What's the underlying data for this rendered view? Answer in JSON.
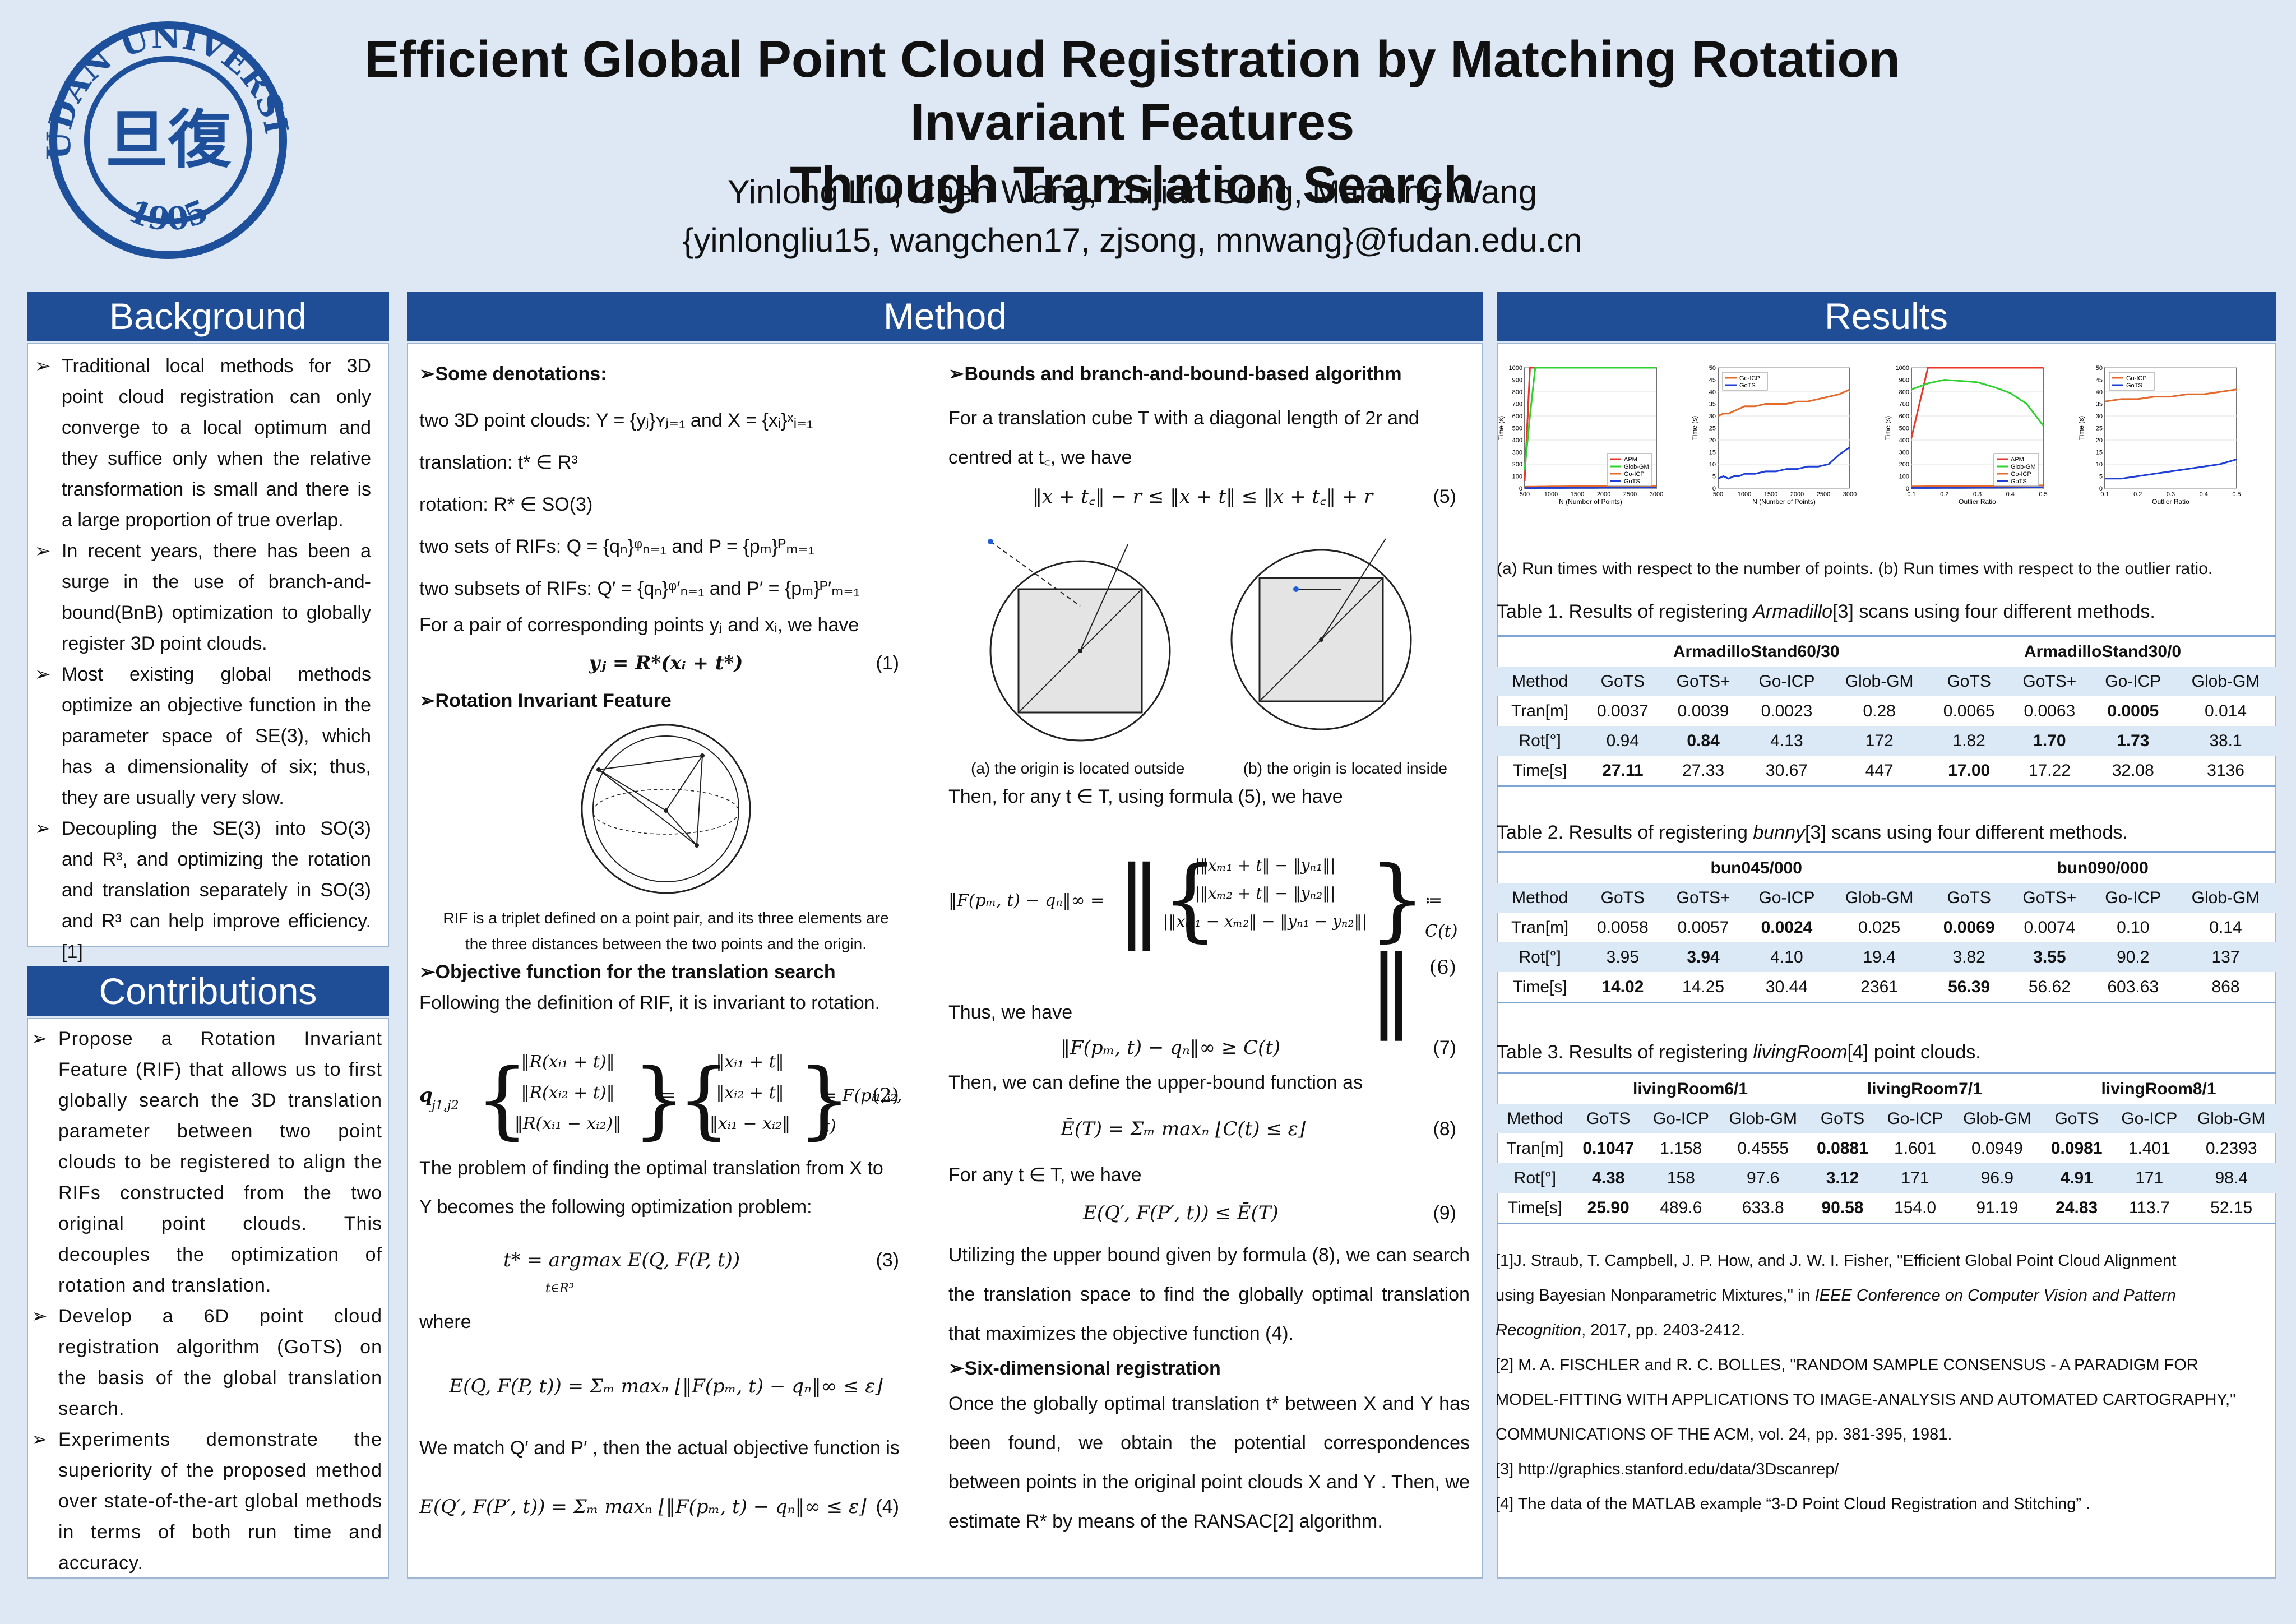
{
  "header": {
    "logo_text": "FUDAN UNIVERSITY",
    "logo_year": "1905",
    "logo_glyph": "旦復",
    "title_line1": "Efficient Global Point Cloud Registration  by Matching  Rotation Invariant Features",
    "title_line2": "Through Translation Search",
    "authors": "Yinlong Liu, Chen Wang, Zhijian Song, Manning Wang",
    "emails": "{yinlongliu15, wangchen17, zjsong, mnwang}@fudan.edu.cn"
  },
  "background": {
    "heading": "Background",
    "bullets": [
      "Traditional local methods for 3D point cloud registration can only converge to a local optimum and they suffice only when the relative transformation is small and there is a large proportion of true overlap.",
      "In recent years, there has been a surge in the use of branch-and-bound(BnB) optimization to globally register 3D point clouds.",
      "Most existing global methods optimize an objective function in the parameter space of SE(3), which has a dimensionality of six; thus, they are usually very slow.",
      "Decoupling the SE(3) into SO(3) and R³, and optimizing the rotation and translation separately in SO(3) and R³ can help improve efficiency.[1]"
    ]
  },
  "contributions": {
    "heading": "Contributions",
    "bullets": [
      "Propose a Rotation Invariant Feature (RIF) that allows us to first globally search the 3D translation parameter between two point clouds to be registered to align the RIFs constructed from the two original point clouds. This decouples the optimization of rotation and translation.",
      "Develop a 6D point cloud registration algorithm (GoTS) on the basis of the global translation search.",
      "Experiments demonstrate the superiority of the proposed method over state-of-the-art global methods in terms of both run time and accuracy."
    ]
  },
  "method": {
    "heading": "Method",
    "col1": {
      "sub1": "Some denotations:",
      "l1": "two 3D point clouds: Y = {yⱼ}ʏⱼ₌₁ and X = {xᵢ}ˣᵢ₌₁",
      "l2": "translation: t* ∈ R³",
      "l3": "rotation:  R* ∈ SO(3)",
      "l4": "two sets of RIFs: Q = {qₙ}ᵠₙ₌₁ and P = {pₘ}ᴾₘ₌₁",
      "l5": "two subsets of RIFs: Q′ = {qₙ}ᵠ′ₙ₌₁ and P′ = {pₘ}ᴾ′ₘ₌₁",
      "l6": "For a pair of corresponding points yⱼ and xᵢ, we have",
      "eq1": "yⱼ = R*(xᵢ + t*)",
      "n1": "(1)",
      "sub2": "Rotation Invariant Feature",
      "rif_cap1": "RIF is a triplet defined on a point pair, and its three elements are",
      "rif_cap2": "the three distances between the two points and the origin.",
      "sub3": "Objective function for the translation search",
      "l7": "Following the definition of RIF, it is invariant to rotation.",
      "eq2_lhs": "q",
      "eq2_lhs_sub": "j1,j2",
      "eq2_a": [
        "‖R(xᵢ₁ + t)‖",
        "‖R(xᵢ₂ + t)‖",
        "‖R(xᵢ₁ − xᵢ₂)‖"
      ],
      "eq2_b": [
        "‖xᵢ₁ + t‖",
        "‖xᵢ₂ + t‖",
        "‖xᵢ₁ − xᵢ₂‖"
      ],
      "eq2_rhs": "= F(pᵢ₁,ᵢ₂, t)",
      "n2": "(2)",
      "l8": "The problem of finding the optimal translation from X to",
      "l9": "Y  becomes the following optimization problem:",
      "eq3": "t* = argmax E(Q, F(P, t))",
      "eq3_sub": "t∈R³",
      "n3": "(3)",
      "l10": "where",
      "eq_e": "E(Q, F(P, t)) = Σₘ maxₙ ⌊‖F(pₘ, t) − qₙ‖∞ ≤ ε⌋",
      "l11": "We match Q′ and P′ , then the actual objective function is",
      "eq4": "E(Q′, F(P′, t)) = Σₘ maxₙ ⌊‖F(pₘ, t) − qₙ‖∞ ≤ ε⌋",
      "n4": "(4)"
    },
    "col2": {
      "sub1": "Bounds and branch-and-bound-based algorithm",
      "l1": "For a translation cube T with a diagonal length of 2r and",
      "l2": "centred at t꜀, we have",
      "eq5": "‖x + t꜀‖ − r ≤ ‖x + t‖ ≤ ‖x + t꜀‖ + r",
      "n5": "(5)",
      "fig_cap_a": "(a) the origin is located outside",
      "fig_cap_b": "(b) the origin is located inside",
      "l3": "Then, for any t ∈ T, using formula (5), we have",
      "eq6_lhs": "‖F(pₘ, t) − qₙ‖∞ =",
      "eq6_rows": [
        "|‖xₘ₁ + t‖ − ‖yₙ₁‖|",
        "|‖xₘ₂ + t‖ − ‖yₙ₂‖|",
        "|‖xₘ₁ − xₘ₂‖ − ‖yₙ₁ − yₙ₂‖|"
      ],
      "eq6_rhs": "≔ C(t)",
      "n6": "(6)",
      "l4": "Thus, we have",
      "eq7": "‖F(pₘ, t) − qₙ‖∞ ≥ C(t)",
      "n7": "(7)",
      "l5": "Then, we can define the upper-bound function as",
      "eq8": "Ē(T) = Σₘ maxₙ ⌊C(t) ≤ ε⌋",
      "n8": "(8)",
      "l6": "For any t ∈ T, we have",
      "eq9": "E(Q′, F(P′, t)) ≤ Ē(T)",
      "n9": "(9)",
      "l7": "Utilizing the upper bound given by formula (8), we can search the translation space to find the globally optimal translation that maximizes the objective function (4).",
      "sub2": "Six-dimensional registration",
      "l8": "Once the globally optimal translation t* between X and Y has been found, we obtain the potential correspondences between points in the original point clouds X and Y . Then, we estimate R* by means of the RANSAC[2] algorithm."
    }
  },
  "results": {
    "heading": "Results",
    "plots_caption": "(a) Run times with respect to the number of points. (b) Run times with respect to the outlier ratio.",
    "table1": {
      "caption_pre": "Table 1.  Results of registering ",
      "caption_em": "Armadillo",
      "caption_post": "[3] scans using four different methods.",
      "groups": [
        "ArmadilloStand60/30",
        "ArmadilloStand30/0"
      ],
      "header": [
        "Method",
        "GoTS",
        "GoTS+",
        "Go-ICP",
        "Glob-GM",
        "GoTS",
        "GoTS+",
        "Go-ICP",
        "Glob-GM"
      ],
      "rows": [
        [
          "Tran[m]",
          "0.0037",
          "0.0039",
          "0.0023",
          "0.28",
          "0.0065",
          "0.0063",
          "0.0005",
          "0.014"
        ],
        [
          "Rot[°]",
          "0.94",
          "0.84",
          "4.13",
          "172",
          "1.82",
          "1.70",
          "1.73",
          "38.1"
        ],
        [
          "Time[s]",
          "27.11",
          "27.33",
          "30.67",
          "447",
          "17.00",
          "17.22",
          "32.08",
          "3136"
        ]
      ]
    },
    "table2": {
      "caption_pre": "Table 2.  Results of registering ",
      "caption_em": "bunny",
      "caption_post": "[3] scans using four different methods.",
      "groups": [
        "bun045/000",
        "bun090/000"
      ],
      "header": [
        "Method",
        "GoTS",
        "GoTS+",
        "Go-ICP",
        "Glob-GM",
        "GoTS",
        "GoTS+",
        "Go-ICP",
        "Glob-GM"
      ],
      "rows": [
        [
          "Tran[m]",
          "0.0058",
          "0.0057",
          "0.0024",
          "0.025",
          "0.0069",
          "0.0074",
          "0.10",
          "0.14"
        ],
        [
          "Rot[°]",
          "3.95",
          "3.94",
          "4.10",
          "19.4",
          "3.82",
          "3.55",
          "90.2",
          "137"
        ],
        [
          "Time[s]",
          "14.02",
          "14.25",
          "30.44",
          "2361",
          "56.39",
          "56.62",
          "603.63",
          "868"
        ]
      ]
    },
    "table3": {
      "caption_pre": "Table 3.  Results of registering ",
      "caption_em": "livingRoom",
      "caption_post": "[4] point clouds.",
      "groups": [
        "livingRoom6/1",
        "livingRoom7/1",
        "livingRoom8/1"
      ],
      "header": [
        "Method",
        "GoTS",
        "Go-ICP",
        "Glob-GM",
        "GoTS",
        "Go-ICP",
        "Glob-GM",
        "GoTS",
        "Go-ICP",
        "Glob-GM"
      ],
      "rows": [
        [
          "Tran[m]",
          "0.1047",
          "1.158",
          "0.4555",
          "0.0881",
          "1.601",
          "0.0949",
          "0.0981",
          "1.401",
          "0.2393"
        ],
        [
          "Rot[°]",
          "4.38",
          "158",
          "97.6",
          "3.12",
          "171",
          "96.9",
          "4.91",
          "171",
          "98.4"
        ],
        [
          "Time[s]",
          "25.90",
          "489.6",
          "633.8",
          "90.58",
          "154.0",
          "91.19",
          "24.83",
          "113.7",
          "52.15"
        ]
      ]
    },
    "refs": {
      "r1a": "[1]J. Straub, T. Campbell, J. P. How, and J. W. I. Fisher, \"Efficient Global Point Cloud Alignment",
      "r1b_pre": "using Bayesian Nonparametric Mixtures,\" in ",
      "r1b_em": "IEEE Conference on Computer Vision and Pattern",
      "r1c_em": "Recognition",
      "r1c_post": ", 2017, pp. 2403-2412.",
      "r2a": "[2] M. A. FISCHLER and R. C. BOLLES, \"RANDOM SAMPLE CONSENSUS - A PARADIGM FOR",
      "r2b": "MODEL-FITTING WITH APPLICATIONS TO IMAGE-ANALYSIS AND AUTOMATED CARTOGRAPHY,\"",
      "r2c": "COMMUNICATIONS OF THE ACM, vol. 24, pp. 381-395, 1981.",
      "r3": "[3] http://graphics.stanford.edu/data/3Dscanrep/",
      "r4": "[4] The data of the MATLAB example “3-D Point Cloud Registration and Stitching” ."
    }
  },
  "colors": {
    "heading_bar": "#1f4e96",
    "logo_blue": "#1d4f9a",
    "apm": "#e8362a",
    "glob_gm": "#2fd12f",
    "go_icp": "#e36a2a",
    "gots": "#1e3fd6"
  },
  "chart_data": [
    {
      "type": "line",
      "title": "",
      "xlabel": "N (Number of Points)",
      "ylabel": "Time (s)",
      "xlim": [
        500,
        3000
      ],
      "ylim": [
        0,
        1000
      ],
      "x": [
        500,
        600,
        700,
        800,
        900,
        1000,
        1200,
        1400,
        1600,
        1800,
        2000,
        2200,
        2400,
        2600,
        2800,
        3000
      ],
      "legend": [
        "APM",
        "Glob-GM",
        "Go-ICP",
        "GoTS"
      ],
      "legend_position": "bottom-right",
      "xticks": [
        "500",
        "1000",
        "1500",
        "2000",
        "2500",
        "3000"
      ],
      "yticks": [
        "0",
        "100",
        "200",
        "300",
        "400",
        "500",
        "600",
        "700",
        "800",
        "900",
        "1000"
      ],
      "series": [
        {
          "name": "APM",
          "values": [
            60,
            1000,
            1000,
            1000,
            1000,
            1000,
            1000,
            1000,
            1000,
            1000,
            1000,
            1000,
            1000,
            1000,
            1000,
            1000
          ]
        },
        {
          "name": "Glob-GM",
          "values": [
            150,
            600,
            1000,
            1000,
            1000,
            1000,
            1000,
            1000,
            1000,
            1000,
            1000,
            1000,
            1000,
            1000,
            1000,
            1000
          ]
        },
        {
          "name": "Go-ICP",
          "values": [
            12,
            13,
            13,
            14,
            14,
            15,
            15,
            16,
            16,
            17,
            17,
            18,
            18,
            19,
            19,
            20
          ]
        },
        {
          "name": "GoTS",
          "values": [
            2,
            2,
            2,
            3,
            3,
            3,
            3,
            4,
            4,
            4,
            5,
            5,
            5,
            6,
            6,
            6
          ]
        }
      ]
    },
    {
      "type": "line",
      "title": "",
      "xlabel": "N (Number of Points)",
      "ylabel": "Time (s)",
      "xlim": [
        500,
        3000
      ],
      "ylim": [
        0,
        50
      ],
      "x": [
        500,
        600,
        700,
        800,
        900,
        1000,
        1200,
        1400,
        1600,
        1800,
        2000,
        2200,
        2400,
        2600,
        2800,
        3000
      ],
      "legend": [
        "Go-ICP",
        "GoTS"
      ],
      "legend_position": "top-left",
      "xticks": [
        "500",
        "1000",
        "1500",
        "2000",
        "2500",
        "3000"
      ],
      "yticks": [
        "0",
        "5",
        "10",
        "15",
        "20",
        "25",
        "30",
        "35",
        "40",
        "45",
        "50"
      ],
      "series": [
        {
          "name": "Go-ICP",
          "values": [
            30,
            31,
            31,
            32,
            33,
            34,
            34,
            35,
            35,
            35,
            36,
            36,
            37,
            38,
            39,
            41
          ]
        },
        {
          "name": "GoTS",
          "values": [
            4,
            5,
            4,
            5,
            5,
            6,
            6,
            7,
            7,
            8,
            8,
            9,
            9,
            10,
            14,
            17
          ]
        }
      ]
    },
    {
      "type": "line",
      "title": "",
      "xlabel": "Outlier Ratio",
      "ylabel": "Time (s)",
      "xlim": [
        0.1,
        0.5
      ],
      "ylim": [
        0,
        1000
      ],
      "x": [
        0.1,
        0.15,
        0.2,
        0.25,
        0.3,
        0.35,
        0.4,
        0.45,
        0.5
      ],
      "legend": [
        "APM",
        "Glob-GM",
        "Go-ICP",
        "GoTS"
      ],
      "legend_position": "bottom-right",
      "xticks": [
        "0.1",
        "0.2",
        "0.3",
        "0.4",
        "0.5"
      ],
      "yticks": [
        "0",
        "100",
        "200",
        "300",
        "400",
        "500",
        "600",
        "700",
        "800",
        "900",
        "1000"
      ],
      "series": [
        {
          "name": "APM",
          "values": [
            420,
            1000,
            1000,
            1000,
            1000,
            1000,
            1000,
            1000,
            1000
          ]
        },
        {
          "name": "Glob-GM",
          "values": [
            820,
            870,
            900,
            890,
            880,
            840,
            790,
            700,
            520
          ]
        },
        {
          "name": "Go-ICP",
          "values": [
            15,
            16,
            17,
            18,
            19,
            20,
            21,
            22,
            24
          ]
        },
        {
          "name": "GoTS",
          "values": [
            3,
            3,
            4,
            4,
            5,
            5,
            6,
            7,
            8
          ]
        }
      ]
    },
    {
      "type": "line",
      "title": "",
      "xlabel": "Outlier Ratio",
      "ylabel": "Time (s)",
      "xlim": [
        0.1,
        0.5
      ],
      "ylim": [
        0,
        50
      ],
      "x": [
        0.1,
        0.15,
        0.2,
        0.25,
        0.3,
        0.35,
        0.4,
        0.45,
        0.5
      ],
      "legend": [
        "Go-ICP",
        "GoTS"
      ],
      "legend_position": "top-left",
      "xticks": [
        "0.1",
        "0.2",
        "0.3",
        "0.4",
        "0.5"
      ],
      "yticks": [
        "0",
        "5",
        "10",
        "15",
        "20",
        "25",
        "30",
        "35",
        "40",
        "45",
        "50"
      ],
      "series": [
        {
          "name": "Go-ICP",
          "values": [
            36,
            37,
            37,
            38,
            38,
            39,
            39,
            40,
            41
          ]
        },
        {
          "name": "GoTS",
          "values": [
            4,
            4,
            5,
            6,
            7,
            8,
            9,
            10,
            12
          ]
        }
      ]
    }
  ]
}
